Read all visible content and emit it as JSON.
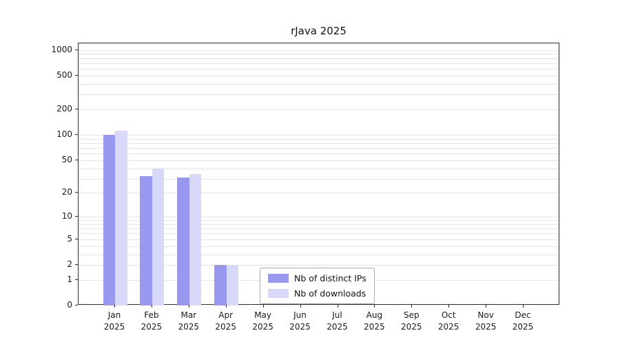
{
  "title": "rJava 2025",
  "colors": {
    "ips_bar": "#9898ee",
    "downloads_bar": "#d8d8f8",
    "grid": "#e4e4e4",
    "axis": "#2a2a2a",
    "background": "#ffffff"
  },
  "chart_data": {
    "type": "bar",
    "scale": "log1p",
    "title": "rJava 2025",
    "year": "2025",
    "categories": [
      "Jan",
      "Feb",
      "Mar",
      "Apr",
      "May",
      "Jun",
      "Jul",
      "Aug",
      "Sep",
      "Oct",
      "Nov",
      "Dec"
    ],
    "series": [
      {
        "name": "Nb of distinct IPs",
        "color": "#9898ee",
        "values": [
          101,
          32,
          31,
          2,
          0,
          0,
          0,
          0,
          0,
          0,
          0,
          0
        ]
      },
      {
        "name": "Nb of downloads",
        "color": "#d8d8f8",
        "values": [
          113,
          40,
          34,
          2,
          0,
          0,
          0,
          0,
          0,
          0,
          0,
          0
        ]
      }
    ],
    "y_ticks": [
      0,
      1,
      2,
      5,
      10,
      20,
      50,
      100,
      200,
      500,
      1000
    ],
    "ylim_top": 1200,
    "grid": "on",
    "legend_position": "bottom-center"
  }
}
